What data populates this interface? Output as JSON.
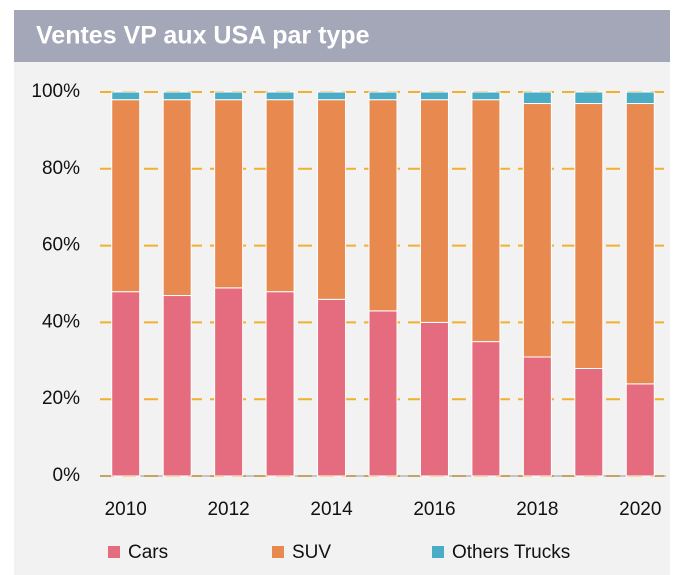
{
  "chart_data": {
    "type": "stacked_bar",
    "title": "Ventes VP aux USA par type",
    "categories": [
      "2010",
      null,
      "2012",
      null,
      "2014",
      null,
      "2016",
      null,
      "2018",
      null,
      "2020"
    ],
    "series": [
      {
        "name": "Cars",
        "color": "#e46c7e",
        "values": [
          48,
          47,
          49,
          48,
          46,
          43,
          40,
          35,
          31,
          28,
          24
        ]
      },
      {
        "name": "SUV",
        "color": "#e8894f",
        "values": [
          50,
          51,
          49,
          50,
          52,
          55,
          58,
          63,
          66,
          69,
          73
        ]
      },
      {
        "name": "Others Trucks",
        "color": "#4bacc6",
        "values": [
          2,
          2,
          2,
          2,
          2,
          2,
          2,
          2,
          3,
          3,
          3
        ]
      }
    ],
    "ylim": [
      0,
      100
    ],
    "yticks": [
      {
        "value": 0,
        "label": "0%"
      },
      {
        "value": 20,
        "label": "20%"
      },
      {
        "value": 40,
        "label": "40%"
      },
      {
        "value": 60,
        "label": "60%"
      },
      {
        "value": 80,
        "label": "80%"
      },
      {
        "value": 100,
        "label": "100%"
      }
    ],
    "grid": true,
    "legend": "bottom"
  }
}
